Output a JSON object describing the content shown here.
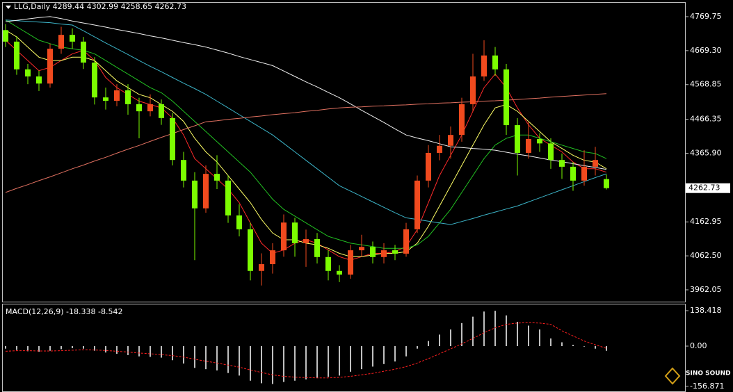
{
  "chart_data": [
    {
      "type": "candlestick",
      "title": "LLG,Daily  4289.44 4302.99 4258.65 4262.73",
      "up_color": "#f04a1e",
      "down_color": "#7cfc00",
      "open": [
        4730,
        4696,
        4614,
        4593,
        4572,
        4675,
        4716,
        4696,
        4634,
        4531,
        4521,
        4552,
        4511,
        4490,
        4511,
        4470,
        4346,
        4285,
        4203,
        4305,
        4285,
        4182,
        4141,
        4018,
        4038,
        4079,
        4161,
        4100,
        4112,
        4059,
        4018,
        4007,
        4079,
        4089,
        4059,
        4079,
        4069,
        4141,
        4285,
        4367,
        4388,
        4420,
        4511,
        4593,
        4655,
        4614,
        4449,
        4367,
        4408,
        4395,
        4346,
        4326,
        4285,
        4326,
        4289.44
      ],
      "high": [
        4748,
        4712,
        4630,
        4610,
        4690,
        4740,
        4735,
        4710,
        4650,
        4560,
        4570,
        4570,
        4530,
        4540,
        4525,
        4485,
        4370,
        4310,
        4330,
        4360,
        4300,
        4215,
        4160,
        4070,
        4100,
        4185,
        4175,
        4140,
        4130,
        4080,
        4035,
        4095,
        4125,
        4105,
        4100,
        4095,
        4160,
        4300,
        4390,
        4420,
        4445,
        4530,
        4660,
        4700,
        4680,
        4630,
        4470,
        4460,
        4425,
        4410,
        4365,
        4340,
        4375,
        4385,
        4302.99
      ],
      "low": [
        4680,
        4598,
        4570,
        4550,
        4560,
        4660,
        4675,
        4615,
        4510,
        4495,
        4505,
        4480,
        4410,
        4475,
        4450,
        4330,
        4265,
        4050,
        4190,
        4260,
        4160,
        4120,
        3990,
        3975,
        4010,
        4060,
        4060,
        4030,
        4040,
        3990,
        3985,
        3995,
        4060,
        4040,
        4040,
        4050,
        4060,
        4130,
        4265,
        4345,
        4350,
        4400,
        4490,
        4580,
        4595,
        4420,
        4300,
        4350,
        4370,
        4320,
        4290,
        4255,
        4270,
        4300,
        4258.65
      ],
      "close": [
        4696,
        4614,
        4593,
        4572,
        4675,
        4716,
        4696,
        4634,
        4531,
        4521,
        4552,
        4511,
        4490,
        4511,
        4470,
        4346,
        4285,
        4203,
        4305,
        4285,
        4182,
        4141,
        4018,
        4038,
        4079,
        4161,
        4100,
        4112,
        4059,
        4018,
        4007,
        4079,
        4089,
        4059,
        4079,
        4069,
        4141,
        4285,
        4367,
        4388,
        4420,
        4511,
        4593,
        4655,
        4614,
        4449,
        4367,
        4408,
        4395,
        4346,
        4326,
        4285,
        4326,
        4346,
        4262.73
      ],
      "lines": [
        {
          "color": "#ff2a2a",
          "values": [
            4700,
            4670,
            4640,
            4610,
            4620,
            4640,
            4660,
            4670,
            4640,
            4590,
            4560,
            4540,
            4520,
            4510,
            4500,
            4470,
            4420,
            4350,
            4320,
            4290,
            4260,
            4220,
            4160,
            4100,
            4070,
            4080,
            4100,
            4110,
            4100,
            4080,
            4060,
            4050,
            4060,
            4070,
            4070,
            4075,
            4090,
            4140,
            4220,
            4300,
            4360,
            4420,
            4490,
            4560,
            4600,
            4560,
            4500,
            4450,
            4410,
            4390,
            4370,
            4340,
            4320,
            4320,
            4310
          ]
        },
        {
          "color": "#ffff66",
          "values": [
            4730,
            4710,
            4680,
            4650,
            4640,
            4640,
            4650,
            4650,
            4640,
            4610,
            4580,
            4560,
            4540,
            4530,
            4510,
            4490,
            4460,
            4410,
            4370,
            4340,
            4300,
            4260,
            4220,
            4170,
            4130,
            4110,
            4110,
            4100,
            4095,
            4085,
            4070,
            4060,
            4060,
            4065,
            4070,
            4070,
            4075,
            4100,
            4150,
            4210,
            4270,
            4330,
            4390,
            4450,
            4500,
            4510,
            4490,
            4460,
            4430,
            4400,
            4380,
            4360,
            4345,
            4340,
            4320
          ]
        },
        {
          "color": "#22c022",
          "values": [
            4760,
            4740,
            4720,
            4700,
            4690,
            4680,
            4675,
            4670,
            4660,
            4640,
            4620,
            4600,
            4580,
            4560,
            4545,
            4520,
            4490,
            4460,
            4430,
            4400,
            4370,
            4340,
            4310,
            4270,
            4230,
            4200,
            4180,
            4160,
            4140,
            4120,
            4110,
            4100,
            4095,
            4090,
            4085,
            4085,
            4085,
            4095,
            4120,
            4160,
            4200,
            4250,
            4300,
            4350,
            4390,
            4410,
            4420,
            4420,
            4410,
            4400,
            4390,
            4380,
            4370,
            4365,
            4350
          ]
        },
        {
          "color": "#3cb4c8",
          "values": [
            4760,
            4758,
            4756,
            4754,
            4752,
            4748,
            4745,
            4728,
            4710,
            4692,
            4675,
            4658,
            4640,
            4623,
            4607,
            4590,
            4573,
            4557,
            4540,
            4520,
            4500,
            4480,
            4460,
            4440,
            4420,
            4395,
            4370,
            4345,
            4320,
            4295,
            4270,
            4254,
            4238,
            4222,
            4206,
            4190,
            4175,
            4170,
            4165,
            4160,
            4155,
            4164,
            4173,
            4183,
            4192,
            4201,
            4210,
            4222,
            4234,
            4246,
            4258,
            4270,
            4282,
            4294,
            4305
          ]
        },
        {
          "color": "#f0f0f0",
          "values": [
            4755,
            4759,
            4763,
            4767,
            4770,
            4764,
            4757,
            4751,
            4745,
            4739,
            4732,
            4726,
            4720,
            4713,
            4707,
            4700,
            4693,
            4687,
            4680,
            4671,
            4662,
            4652,
            4643,
            4634,
            4625,
            4609,
            4593,
            4577,
            4562,
            4546,
            4530,
            4512,
            4493,
            4475,
            4457,
            4438,
            4420,
            4411,
            4403,
            4394,
            4385,
            4383,
            4380,
            4378,
            4375,
            4369,
            4363,
            4358,
            4352,
            4346,
            4341,
            4335,
            4329,
            4324,
            4318
          ]
        },
        {
          "color": "#e07060",
          "values": [
            4250,
            4262,
            4273,
            4285,
            4296,
            4308,
            4320,
            4331,
            4343,
            4354,
            4366,
            4378,
            4389,
            4401,
            4413,
            4424,
            4436,
            4447,
            4459,
            4462,
            4466,
            4469,
            4473,
            4476,
            4480,
            4483,
            4486,
            4490,
            4493,
            4497,
            4500,
            4502,
            4503,
            4505,
            4506,
            4508,
            4509,
            4511,
            4512,
            4514,
            4515,
            4517,
            4518,
            4520,
            4521,
            4523,
            4525,
            4527,
            4529,
            4532,
            4534,
            4536,
            4538,
            4540,
            4542
          ]
        }
      ],
      "ylim": [
        3927.1,
        4812.9
      ],
      "yticks": [
        4769.75,
        {
          "value": 4669.3,
          "label": "4669.30"
        },
        4568.85,
        4466.35,
        {
          "value": 4365.9,
          "label": "4365.90"
        },
        4162.95,
        {
          "value": 4062.5,
          "label": "4062.50"
        },
        3962.05
      ],
      "current_price": {
        "value": 4262.73,
        "label": "4262.73"
      }
    },
    {
      "type": "macd",
      "title": "MACD(12,26,9) -18.338 -8.542",
      "series": [
        {
          "color": "#ffffff",
          "values": [
            -10,
            -15,
            -20,
            -22,
            -18,
            -12,
            -8,
            -10,
            -18,
            -25,
            -30,
            -35,
            -40,
            -42,
            -45,
            -55,
            -68,
            -85,
            -90,
            -95,
            -105,
            -115,
            -135,
            -145,
            -148,
            -140,
            -135,
            -130,
            -125,
            -120,
            -115,
            -100,
            -90,
            -80,
            -70,
            -60,
            -40,
            -10,
            20,
            45,
            65,
            90,
            115,
            135,
            138,
            120,
            95,
            80,
            65,
            30,
            15,
            5,
            -2,
            -10,
            -18.338
          ]
        },
        {
          "color": "#ff2020",
          "values": [
            -20,
            -18,
            -18,
            -19,
            -19,
            -18,
            -16,
            -14,
            -15,
            -17,
            -20,
            -23,
            -27,
            -30,
            -33,
            -37,
            -43,
            -51,
            -59,
            -66,
            -74,
            -82,
            -93,
            -103,
            -112,
            -118,
            -121,
            -123,
            -124,
            -124,
            -122,
            -118,
            -112,
            -106,
            -98,
            -90,
            -80,
            -66,
            -49,
            -30,
            -11,
            9,
            30,
            52,
            72,
            85,
            90,
            92,
            90,
            85,
            60,
            40,
            20,
            5,
            -8.542
          ]
        }
      ],
      "ylim": [
        -173.7,
        162.8
      ],
      "yticks": [
        138.418,
        {
          "value": 0,
          "label": "0.00"
        },
        -156.871
      ]
    }
  ],
  "watermark": "SINO SOUND"
}
